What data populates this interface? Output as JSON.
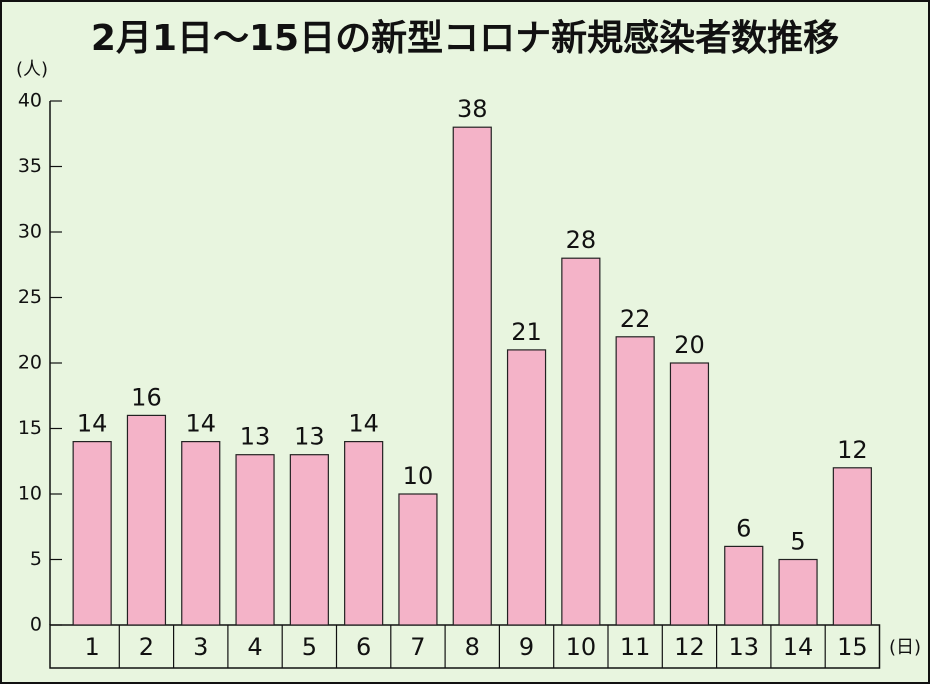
{
  "chart_data": {
    "type": "bar",
    "title": "2月1日～15日の新型コロナ新規感染者数推移",
    "y_label": "(人)",
    "x_label": "(日)",
    "categories": [
      "1",
      "2",
      "3",
      "4",
      "5",
      "6",
      "7",
      "8",
      "9",
      "10",
      "11",
      "12",
      "13",
      "14",
      "15"
    ],
    "values": [
      14,
      16,
      14,
      13,
      13,
      14,
      10,
      38,
      21,
      28,
      22,
      20,
      6,
      5,
      12
    ],
    "color": "#f4b3c8",
    "ylim": [
      0,
      40
    ],
    "yticks": [
      0,
      5,
      10,
      15,
      20,
      25,
      30,
      35,
      40
    ],
    "grid": false
  }
}
